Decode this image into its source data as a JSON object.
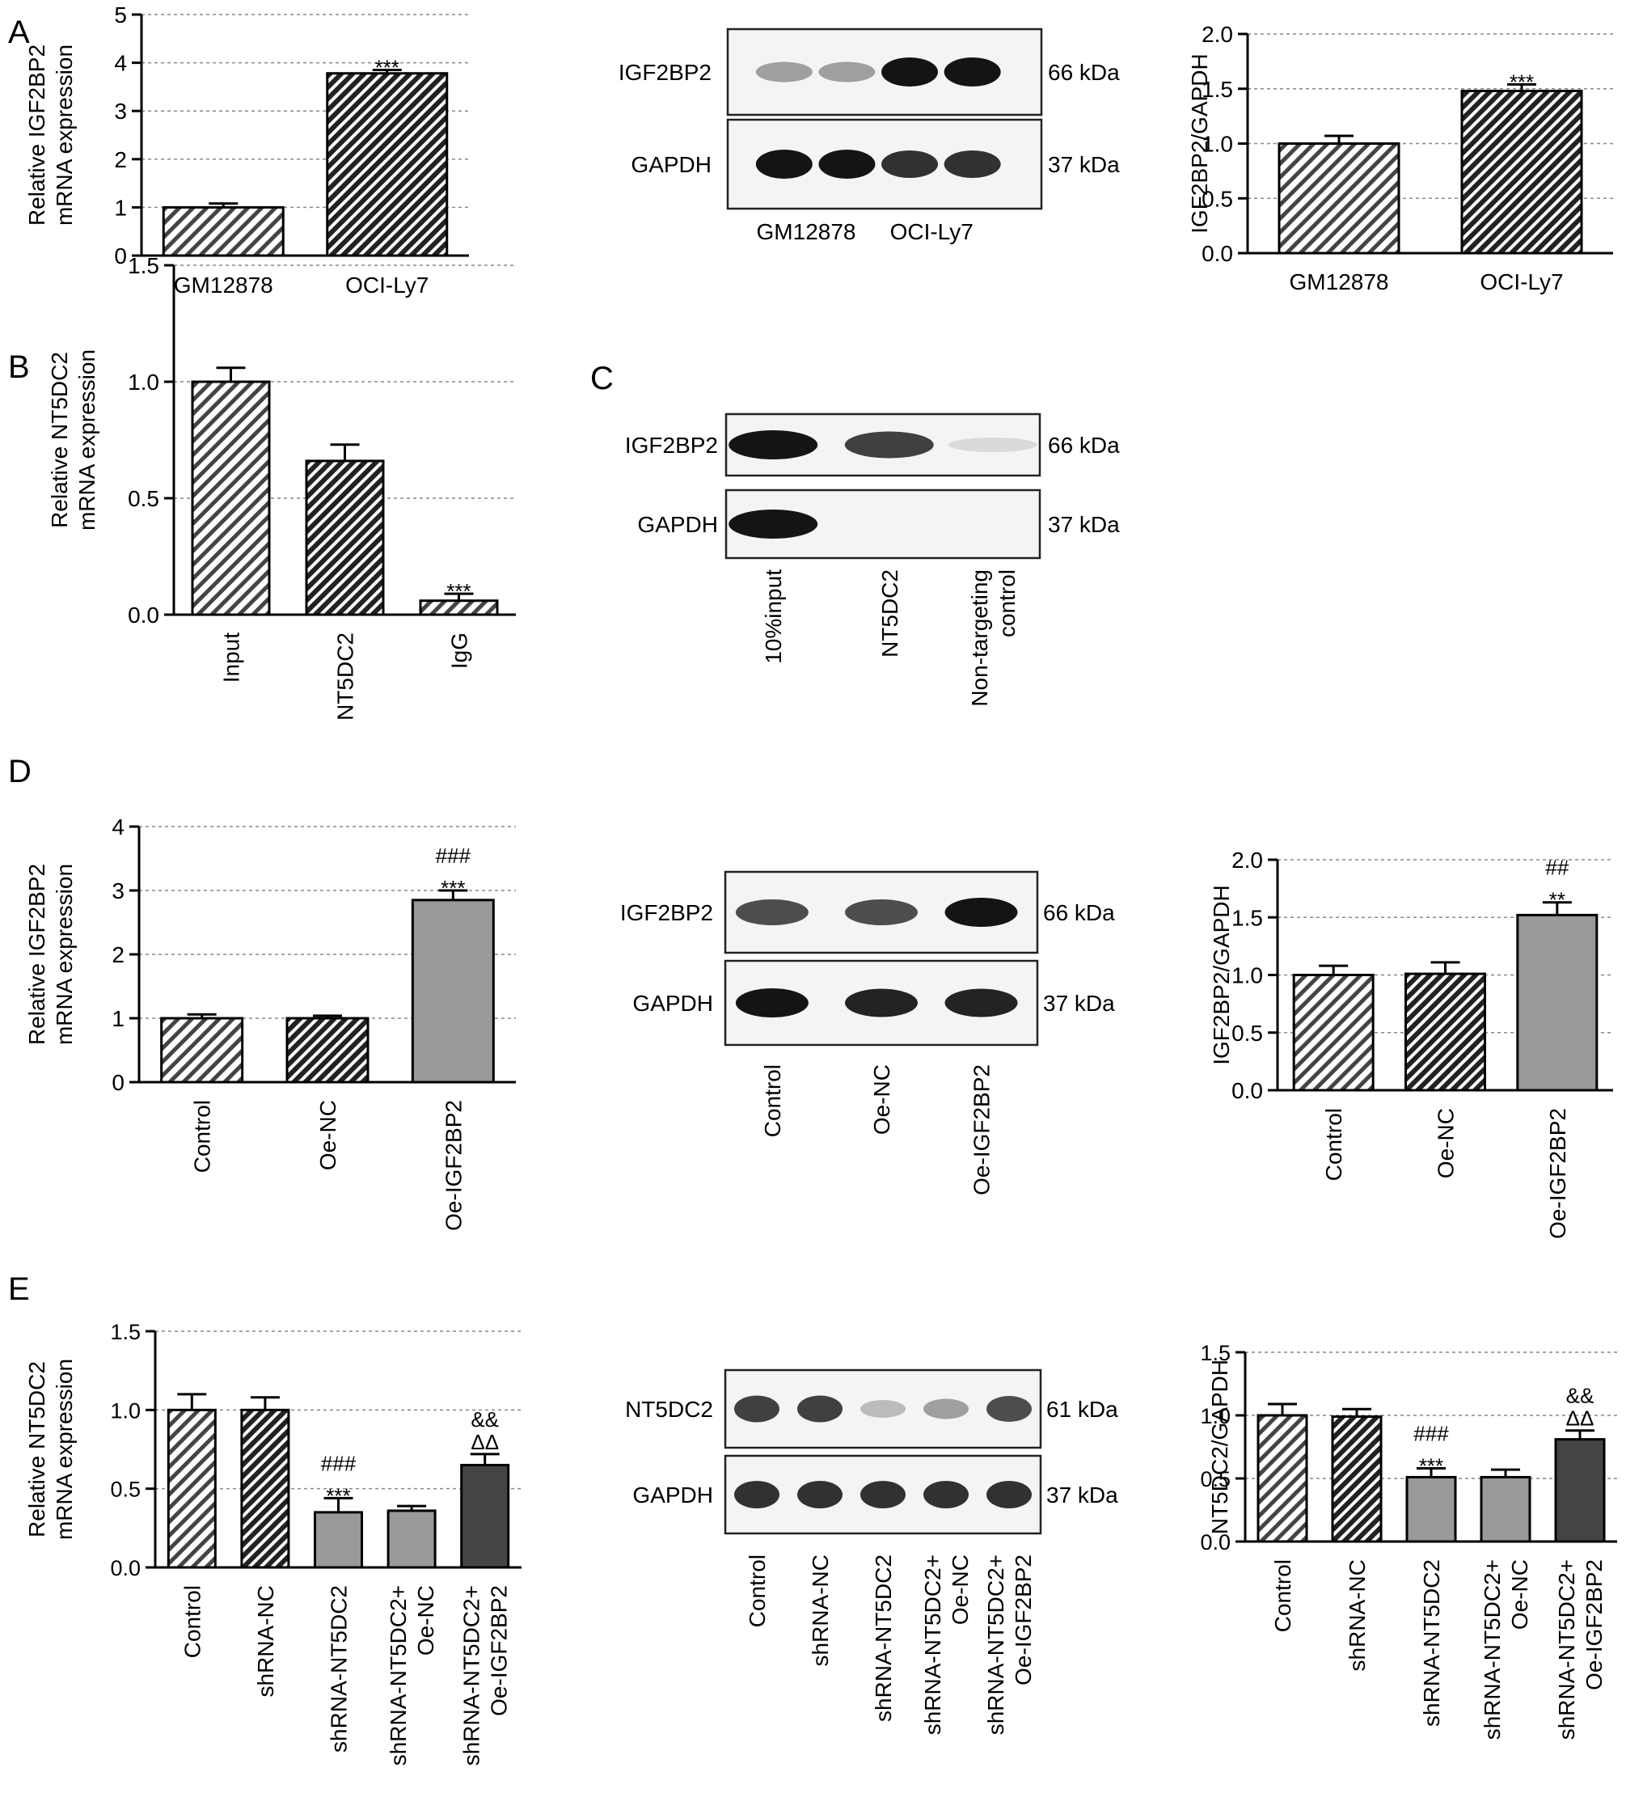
{
  "panel_labels": [
    "A",
    "B",
    "C",
    "D",
    "E"
  ],
  "colors": {
    "bar_light": "#c4c4c4",
    "bar_dark": "#555555",
    "bar_mid": "#999999",
    "bar_darkest": "#444444",
    "axis": "#000000",
    "grid": "#888888"
  },
  "chart_data": [
    {
      "panel": "A",
      "type": "bar",
      "ylabel": [
        "Relative IGF2BP2",
        "mRNA expression"
      ],
      "ylim": [
        0,
        5
      ],
      "yticks": [
        "0",
        "1",
        "2",
        "3",
        "4",
        "5"
      ],
      "grid": "dashed",
      "categories": [
        "GM12878",
        "OCI-Ly7"
      ],
      "values": [
        1.0,
        3.78
      ],
      "errors": [
        0.08,
        0.07
      ],
      "bar_styles": [
        "hatch-light",
        "hatch-dark"
      ],
      "annotations": [
        [],
        [
          "***"
        ]
      ]
    },
    {
      "panel": "A",
      "type": "bar",
      "ylabel": [
        "IGF2BP2/GAPDH"
      ],
      "ylim": [
        0,
        2
      ],
      "yticks": [
        "0.0",
        "0.5",
        "1.0",
        "1.5",
        "2.0"
      ],
      "grid": "dashed",
      "categories": [
        "GM12878",
        "OCI-Ly7"
      ],
      "values": [
        1.0,
        1.48
      ],
      "errors": [
        0.07,
        0.06
      ],
      "bar_styles": [
        "hatch-light",
        "hatch-dark"
      ],
      "annotations": [
        [],
        [
          "***"
        ]
      ]
    },
    {
      "panel": "B",
      "type": "bar",
      "ylabel": [
        "Relative NT5DC2",
        "mRNA expression"
      ],
      "ylim": [
        0,
        1.5
      ],
      "yticks": [
        "0.0",
        "0.5",
        "1.0",
        "1.5"
      ],
      "grid": "dashed",
      "categories": [
        "Input",
        "NT5DC2",
        "IgG"
      ],
      "values": [
        1.0,
        0.66,
        0.06
      ],
      "errors": [
        0.06,
        0.07,
        0.03
      ],
      "bar_styles": [
        "hatch-light",
        "hatch-dark",
        "hatch-light"
      ],
      "annotations": [
        [],
        [],
        [
          "***"
        ]
      ]
    },
    {
      "panel": "D",
      "type": "bar",
      "ylabel": [
        "Relative IGF2BP2",
        "mRNA expression"
      ],
      "ylim": [
        0,
        4
      ],
      "yticks": [
        "0",
        "1",
        "2",
        "3",
        "4"
      ],
      "grid": "dashed",
      "categories": [
        "Control",
        "Oe-NC",
        "Oe-IGF2BP2"
      ],
      "values": [
        1.0,
        1.0,
        2.85
      ],
      "errors": [
        0.06,
        0.04,
        0.15
      ],
      "bar_styles": [
        "hatch-light",
        "hatch-dark",
        "solid-mid"
      ],
      "annotations": [
        [],
        [],
        [
          "***",
          "###"
        ]
      ]
    },
    {
      "panel": "D",
      "type": "bar",
      "ylabel": [
        "IGF2BP2/GAPDH"
      ],
      "ylim": [
        0,
        2
      ],
      "yticks": [
        "0.0",
        "0.5",
        "1.0",
        "1.5",
        "2.0"
      ],
      "grid": "dashed",
      "categories": [
        "Control",
        "Oe-NC",
        "Oe-IGF2BP2"
      ],
      "values": [
        1.0,
        1.01,
        1.52
      ],
      "errors": [
        0.08,
        0.1,
        0.11
      ],
      "bar_styles": [
        "hatch-light",
        "hatch-dark",
        "solid-mid"
      ],
      "annotations": [
        [],
        [],
        [
          "**",
          "##"
        ]
      ]
    },
    {
      "panel": "E",
      "type": "bar",
      "ylabel": [
        "Relative NT5DC2",
        "mRNA expression"
      ],
      "ylim": [
        0,
        1.5
      ],
      "yticks": [
        "0.0",
        "0.5",
        "1.0",
        "1.5"
      ],
      "grid": "dashed",
      "categories": [
        "Control",
        "shRNA-NC",
        "shRNA-NT5DC2",
        "shRNA-NT5DC2+\nOe-NC",
        "shRNA-NT5DC2+\nOe-IGF2BP2"
      ],
      "values": [
        1.0,
        1.0,
        0.35,
        0.36,
        0.65
      ],
      "errors": [
        0.1,
        0.08,
        0.09,
        0.03,
        0.07
      ],
      "bar_styles": [
        "hatch-light",
        "hatch-dark",
        "solid-mid",
        "solid-mid",
        "solid-dark"
      ],
      "annotations": [
        [],
        [],
        [
          "***",
          "###"
        ],
        [],
        [
          "ΔΔ",
          "&&"
        ]
      ]
    },
    {
      "panel": "E",
      "type": "bar",
      "ylabel": [
        "NT5DC2/GAPDH"
      ],
      "ylim": [
        0,
        1.5
      ],
      "yticks": [
        "0.0",
        "0.5",
        "1.0",
        "1.5"
      ],
      "grid": "dashed",
      "categories": [
        "Control",
        "shRNA-NC",
        "shRNA-NT5DC2",
        "shRNA-NT5DC2+\nOe-NC",
        "shRNA-NT5DC2+\nOe-IGF2BP2"
      ],
      "values": [
        1.0,
        0.99,
        0.51,
        0.51,
        0.81
      ],
      "errors": [
        0.09,
        0.06,
        0.07,
        0.06,
        0.07
      ],
      "bar_styles": [
        "hatch-light",
        "hatch-dark",
        "solid-mid",
        "solid-mid",
        "solid-dark"
      ],
      "annotations": [
        [],
        [],
        [
          "***",
          "###"
        ],
        [],
        [
          "ΔΔ",
          "&&"
        ]
      ]
    }
  ],
  "blots": [
    {
      "panel": "A",
      "rows": [
        {
          "protein": "IGF2BP2",
          "size": "66 kDa",
          "intensity": [
            0.45,
            0.45,
            1.0,
            1.0
          ]
        },
        {
          "protein": "GAPDH",
          "size": "37 kDa",
          "intensity": [
            1.0,
            1.0,
            0.9,
            0.9
          ]
        }
      ],
      "lanes": [
        "GM12878",
        "OCI-Ly7"
      ]
    },
    {
      "panel": "C",
      "rows": [
        {
          "protein": "IGF2BP2",
          "size": "66 kDa",
          "intensity": [
            1.0,
            0.85,
            0.1
          ]
        },
        {
          "protein": "GAPDH",
          "size": "37 kDa",
          "intensity": [
            1.0,
            0,
            0
          ]
        }
      ],
      "lanes": [
        "10%input",
        "NT5DC2",
        "Non-targeting\ncontrol"
      ]
    },
    {
      "panel": "D",
      "rows": [
        {
          "protein": "IGF2BP2",
          "size": "66 kDa",
          "intensity": [
            0.8,
            0.8,
            1.0
          ]
        },
        {
          "protein": "GAPDH",
          "size": "37 kDa",
          "intensity": [
            1.0,
            0.95,
            0.95
          ]
        }
      ],
      "lanes": [
        "Control",
        "Oe-NC",
        "Oe-IGF2BP2"
      ]
    },
    {
      "panel": "E",
      "rows": [
        {
          "protein": "NT5DC2",
          "size": "61 kDa",
          "intensity": [
            0.85,
            0.85,
            0.3,
            0.45,
            0.8
          ]
        },
        {
          "protein": "GAPDH",
          "size": "37 kDa",
          "intensity": [
            0.9,
            0.9,
            0.9,
            0.9,
            0.9
          ]
        }
      ],
      "lanes": [
        "Control",
        "shRNA-NC",
        "shRNA-NT5DC2",
        "shRNA-NT5DC2+\nOe-NC",
        "shRNA-NT5DC2+\nOe-IGF2BP2"
      ]
    }
  ]
}
